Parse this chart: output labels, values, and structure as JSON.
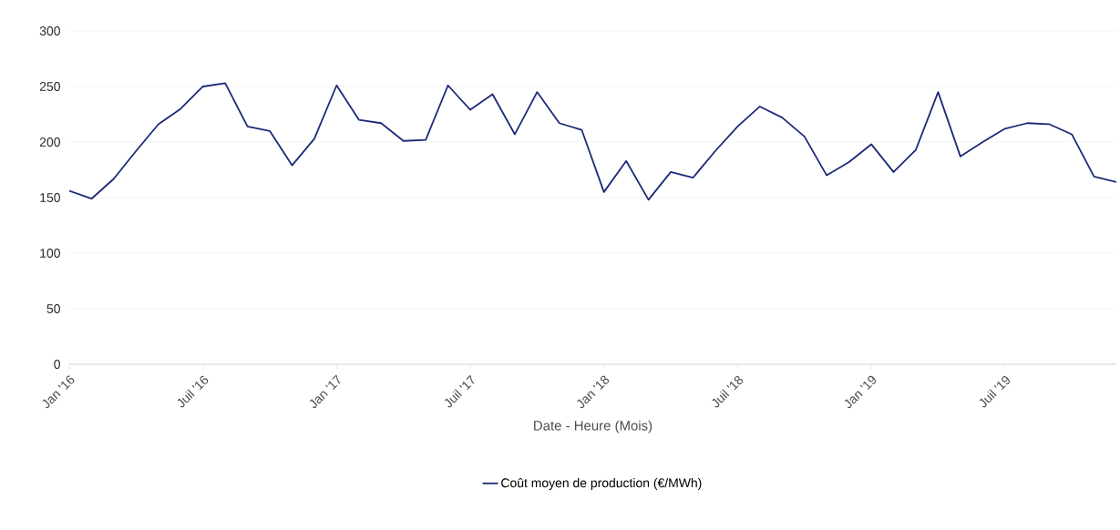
{
  "chart_data": {
    "type": "line",
    "xlabel": "Date - Heure (Mois)",
    "x": [
      "2016-01",
      "2016-02",
      "2016-03",
      "2016-04",
      "2016-05",
      "2016-06",
      "2016-07",
      "2016-08",
      "2016-09",
      "2016-10",
      "2016-11",
      "2016-12",
      "2017-01",
      "2017-02",
      "2017-03",
      "2017-04",
      "2017-05",
      "2017-06",
      "2017-07",
      "2017-08",
      "2017-09",
      "2017-10",
      "2017-11",
      "2017-12",
      "2018-01",
      "2018-02",
      "2018-03",
      "2018-04",
      "2018-05",
      "2018-06",
      "2018-07",
      "2018-08",
      "2018-09",
      "2018-10",
      "2018-11",
      "2018-12",
      "2019-01",
      "2019-02",
      "2019-03",
      "2019-04",
      "2019-05",
      "2019-06",
      "2019-07",
      "2019-08",
      "2019-09",
      "2019-10",
      "2019-11",
      "2019-12"
    ],
    "series": [
      {
        "name": "Coût moyen de production (€/MWh)",
        "color": "#1c2a78",
        "values": [
          156,
          149,
          167,
          192,
          216,
          230,
          250,
          253,
          214,
          210,
          179,
          203,
          251,
          220,
          217,
          201,
          202,
          251,
          229,
          243,
          207,
          245,
          217,
          211,
          155,
          183,
          148,
          173,
          168,
          192,
          214,
          232,
          222,
          205,
          170,
          182,
          198,
          173,
          193,
          245,
          187,
          200,
          212,
          217,
          216,
          207,
          169,
          164
        ]
      }
    ],
    "xlim": [
      "2016-01",
      "2019-12"
    ],
    "xticks": [
      {
        "value": "2016-01",
        "label": "Jan '16"
      },
      {
        "value": "2016-07",
        "label": "Juil '16"
      },
      {
        "value": "2017-01",
        "label": "Jan '17"
      },
      {
        "value": "2017-07",
        "label": "Juil '17"
      },
      {
        "value": "2018-01",
        "label": "Jan '18"
      },
      {
        "value": "2018-07",
        "label": "Juil '18"
      },
      {
        "value": "2019-01",
        "label": "Jan '19"
      },
      {
        "value": "2019-07",
        "label": "Juil '19"
      }
    ],
    "ylim": [
      0,
      300
    ],
    "yticks": [
      0,
      50,
      100,
      150,
      200,
      250,
      300
    ],
    "grid": "y",
    "legend": "bottom",
    "marker": "none",
    "line_style": "solid"
  }
}
